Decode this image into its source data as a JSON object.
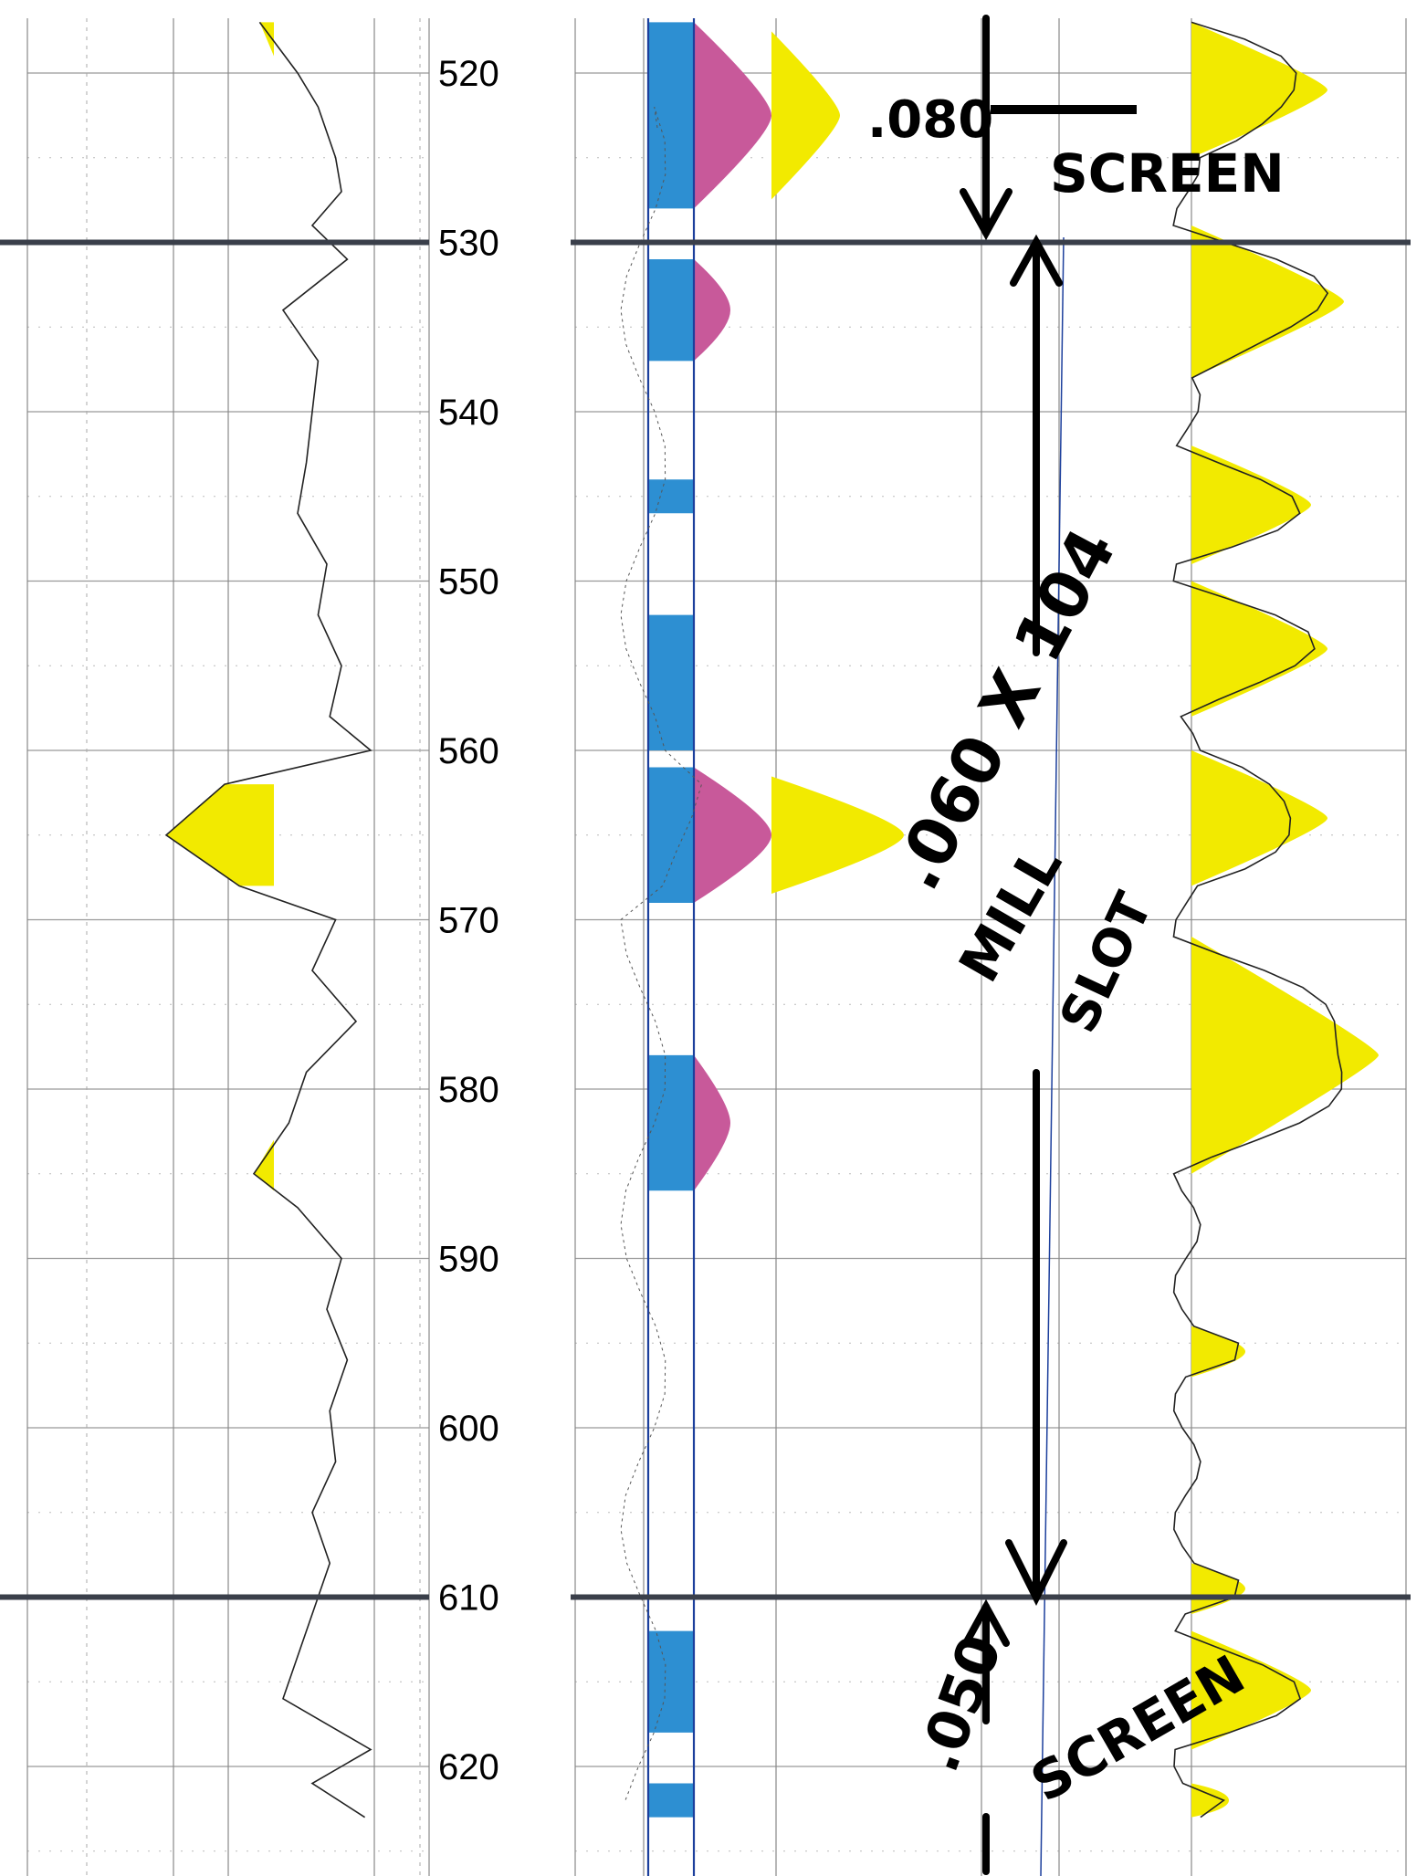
{
  "depth_axis": {
    "labels": [
      "520",
      "530",
      "540",
      "550",
      "560",
      "570",
      "580",
      "590",
      "600",
      "610",
      "620"
    ]
  },
  "annotations": {
    "top_size_struck": ".080",
    "top_screen": "SCREEN",
    "middle_size": ".060 X 104",
    "middle_type_1": "MILL",
    "middle_type_2": "SLOT",
    "bottom_size": ".050",
    "bottom_screen": "SCREEN"
  },
  "chart_data": {
    "type": "line",
    "depth_unit_range": [
      517,
      623
    ],
    "interval_markers": [
      530,
      610
    ],
    "tracks": [
      {
        "id": "gamma",
        "series": [
          {
            "x": [
              517,
              520,
              522,
              525,
              527,
              529,
              531,
              534,
              537,
              540,
              543,
              546,
              549,
              552,
              555,
              558,
              560,
              562,
              565,
              568,
              570,
              573,
              576,
              579,
              582,
              585,
              587,
              590,
              593,
              596,
              599,
              602,
              605,
              608,
              610,
              613,
              616,
              619,
              621,
              623
            ],
            "y": [
              0.42,
              0.55,
              0.62,
              0.68,
              0.7,
              0.6,
              0.72,
              0.5,
              0.62,
              0.6,
              0.58,
              0.55,
              0.65,
              0.62,
              0.7,
              0.66,
              0.8,
              0.3,
              0.1,
              0.35,
              0.68,
              0.6,
              0.75,
              0.58,
              0.52,
              0.4,
              0.55,
              0.7,
              0.65,
              0.72,
              0.66,
              0.68,
              0.6,
              0.66,
              0.62,
              0.56,
              0.5,
              0.8,
              0.6,
              0.78
            ]
          }
        ],
        "shaded": [
          [
            562,
            568
          ],
          [
            583,
            586
          ],
          [
            517,
            519
          ]
        ],
        "fill": "#f2ea00"
      },
      {
        "id": "resistivity",
        "fills": {
          "blue": "#2d8fd2",
          "magenta": "#c8599a",
          "yellow": "#f2ea00"
        },
        "shaded": [
          [
            517,
            528
          ],
          [
            531,
            537
          ],
          [
            544,
            546
          ],
          [
            552,
            560
          ],
          [
            561,
            569
          ],
          [
            578,
            586
          ],
          [
            612,
            618
          ],
          [
            621,
            623
          ]
        ]
      },
      {
        "id": "spontaneous",
        "fill": "#f2ea00",
        "shaded": [
          [
            517,
            525
          ],
          [
            529,
            538
          ],
          [
            542,
            549
          ],
          [
            550,
            558
          ],
          [
            560,
            568
          ],
          [
            571,
            585
          ],
          [
            594,
            597
          ],
          [
            608,
            611
          ],
          [
            612,
            619
          ],
          [
            621,
            623
          ]
        ]
      }
    ]
  }
}
